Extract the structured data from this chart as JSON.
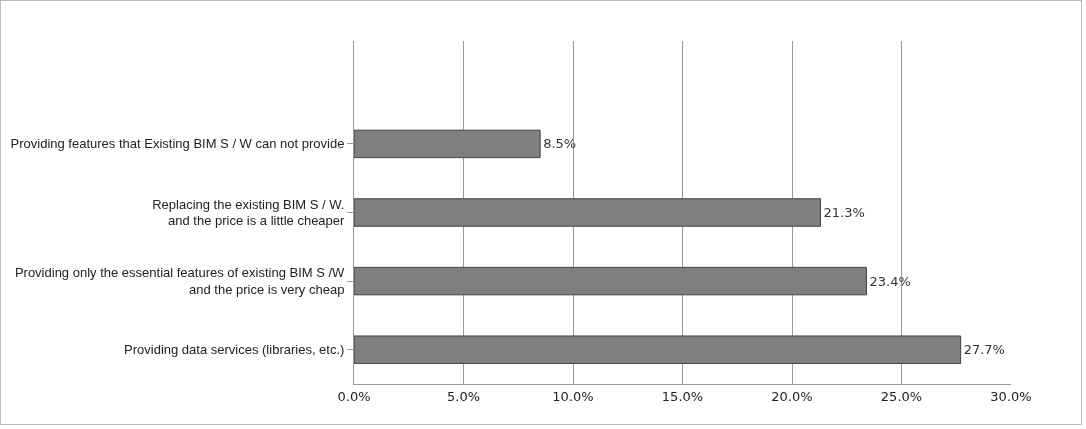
{
  "chart_data": {
    "type": "bar",
    "orientation": "horizontal",
    "categories": [
      null,
      "Providing features that Existing BIM S / W can not provide",
      "Replacing the existing BIM S / W.\nand the price is a little cheaper",
      "Providing only the essential features of existing BIM S /W\nand the price is very cheap",
      "Providing data services (libraries, etc.)"
    ],
    "values": [
      null,
      8.5,
      21.3,
      23.4,
      27.7
    ],
    "value_labels": [
      null,
      "8.5%",
      "21.3%",
      "23.4%",
      "27.7%"
    ],
    "color": "#7f7f7f",
    "xlim": [
      0,
      30
    ],
    "xticks": [
      {
        "value": 0,
        "label": "0.0%"
      },
      {
        "value": 5,
        "label": "5.0%"
      },
      {
        "value": 10,
        "label": "10.0%"
      },
      {
        "value": 15,
        "label": "15.0%"
      },
      {
        "value": 20,
        "label": "20.0%"
      },
      {
        "value": 25,
        "label": "25.0%"
      },
      {
        "value": 30,
        "label": "30.0%"
      }
    ],
    "grid": "x",
    "legend": false
  }
}
